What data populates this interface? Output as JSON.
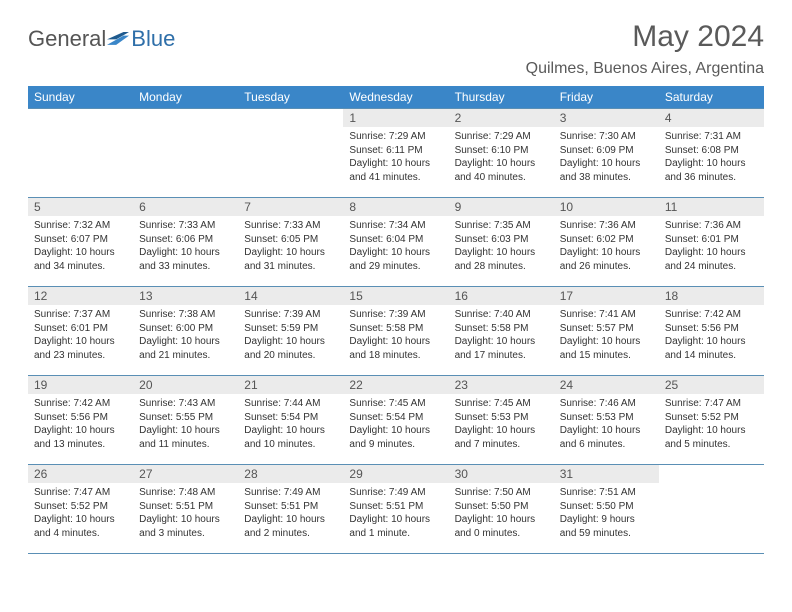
{
  "logo": {
    "text_a": "General",
    "text_b": "Blue"
  },
  "title": "May 2024",
  "location": "Quilmes, Buenos Aires, Argentina",
  "colors": {
    "header_bg": "#3a86c8",
    "header_text": "#ffffff",
    "border": "#5a8fb5",
    "daynum_bg": "#ebebeb",
    "title_color": "#5a5a5a",
    "logo_gray": "#555555",
    "logo_blue": "#2f6fa9"
  },
  "weekdays": [
    "Sunday",
    "Monday",
    "Tuesday",
    "Wednesday",
    "Thursday",
    "Friday",
    "Saturday"
  ],
  "weeks": [
    [
      null,
      null,
      null,
      {
        "n": "1",
        "sr": "7:29 AM",
        "ss": "6:11 PM",
        "dl": "10 hours and 41 minutes."
      },
      {
        "n": "2",
        "sr": "7:29 AM",
        "ss": "6:10 PM",
        "dl": "10 hours and 40 minutes."
      },
      {
        "n": "3",
        "sr": "7:30 AM",
        "ss": "6:09 PM",
        "dl": "10 hours and 38 minutes."
      },
      {
        "n": "4",
        "sr": "7:31 AM",
        "ss": "6:08 PM",
        "dl": "10 hours and 36 minutes."
      }
    ],
    [
      {
        "n": "5",
        "sr": "7:32 AM",
        "ss": "6:07 PM",
        "dl": "10 hours and 34 minutes."
      },
      {
        "n": "6",
        "sr": "7:33 AM",
        "ss": "6:06 PM",
        "dl": "10 hours and 33 minutes."
      },
      {
        "n": "7",
        "sr": "7:33 AM",
        "ss": "6:05 PM",
        "dl": "10 hours and 31 minutes."
      },
      {
        "n": "8",
        "sr": "7:34 AM",
        "ss": "6:04 PM",
        "dl": "10 hours and 29 minutes."
      },
      {
        "n": "9",
        "sr": "7:35 AM",
        "ss": "6:03 PM",
        "dl": "10 hours and 28 minutes."
      },
      {
        "n": "10",
        "sr": "7:36 AM",
        "ss": "6:02 PM",
        "dl": "10 hours and 26 minutes."
      },
      {
        "n": "11",
        "sr": "7:36 AM",
        "ss": "6:01 PM",
        "dl": "10 hours and 24 minutes."
      }
    ],
    [
      {
        "n": "12",
        "sr": "7:37 AM",
        "ss": "6:01 PM",
        "dl": "10 hours and 23 minutes."
      },
      {
        "n": "13",
        "sr": "7:38 AM",
        "ss": "6:00 PM",
        "dl": "10 hours and 21 minutes."
      },
      {
        "n": "14",
        "sr": "7:39 AM",
        "ss": "5:59 PM",
        "dl": "10 hours and 20 minutes."
      },
      {
        "n": "15",
        "sr": "7:39 AM",
        "ss": "5:58 PM",
        "dl": "10 hours and 18 minutes."
      },
      {
        "n": "16",
        "sr": "7:40 AM",
        "ss": "5:58 PM",
        "dl": "10 hours and 17 minutes."
      },
      {
        "n": "17",
        "sr": "7:41 AM",
        "ss": "5:57 PM",
        "dl": "10 hours and 15 minutes."
      },
      {
        "n": "18",
        "sr": "7:42 AM",
        "ss": "5:56 PM",
        "dl": "10 hours and 14 minutes."
      }
    ],
    [
      {
        "n": "19",
        "sr": "7:42 AM",
        "ss": "5:56 PM",
        "dl": "10 hours and 13 minutes."
      },
      {
        "n": "20",
        "sr": "7:43 AM",
        "ss": "5:55 PM",
        "dl": "10 hours and 11 minutes."
      },
      {
        "n": "21",
        "sr": "7:44 AM",
        "ss": "5:54 PM",
        "dl": "10 hours and 10 minutes."
      },
      {
        "n": "22",
        "sr": "7:45 AM",
        "ss": "5:54 PM",
        "dl": "10 hours and 9 minutes."
      },
      {
        "n": "23",
        "sr": "7:45 AM",
        "ss": "5:53 PM",
        "dl": "10 hours and 7 minutes."
      },
      {
        "n": "24",
        "sr": "7:46 AM",
        "ss": "5:53 PM",
        "dl": "10 hours and 6 minutes."
      },
      {
        "n": "25",
        "sr": "7:47 AM",
        "ss": "5:52 PM",
        "dl": "10 hours and 5 minutes."
      }
    ],
    [
      {
        "n": "26",
        "sr": "7:47 AM",
        "ss": "5:52 PM",
        "dl": "10 hours and 4 minutes."
      },
      {
        "n": "27",
        "sr": "7:48 AM",
        "ss": "5:51 PM",
        "dl": "10 hours and 3 minutes."
      },
      {
        "n": "28",
        "sr": "7:49 AM",
        "ss": "5:51 PM",
        "dl": "10 hours and 2 minutes."
      },
      {
        "n": "29",
        "sr": "7:49 AM",
        "ss": "5:51 PM",
        "dl": "10 hours and 1 minute."
      },
      {
        "n": "30",
        "sr": "7:50 AM",
        "ss": "5:50 PM",
        "dl": "10 hours and 0 minutes."
      },
      {
        "n": "31",
        "sr": "7:51 AM",
        "ss": "5:50 PM",
        "dl": "9 hours and 59 minutes."
      },
      null
    ]
  ],
  "labels": {
    "sunrise": "Sunrise:",
    "sunset": "Sunset:",
    "daylight": "Daylight:"
  }
}
